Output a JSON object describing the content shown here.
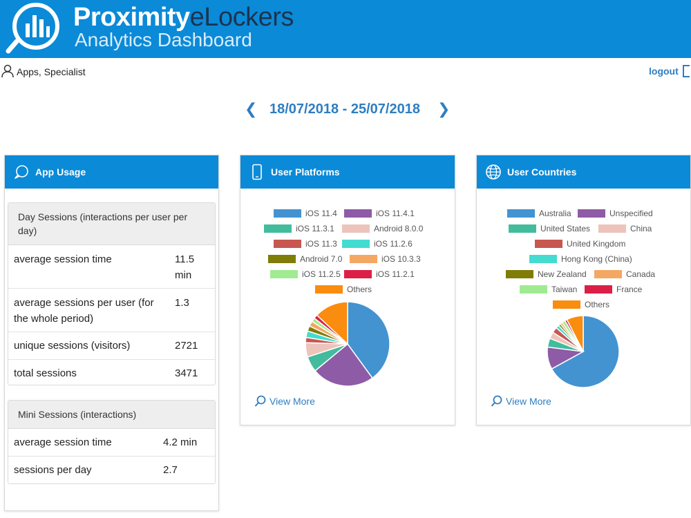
{
  "header": {
    "brand_main": "Proximity",
    "brand_accent": "eLockers",
    "brand_sub": "Analytics Dashboard"
  },
  "user": {
    "name": "Apps, Specialist",
    "logout": "logout"
  },
  "date_range": {
    "prev": "❮",
    "text": "18/07/2018 - 25/07/2018",
    "next": "❯"
  },
  "usage": {
    "title": "App Usage",
    "day": {
      "heading": "Day Sessions (interactions per user per day)",
      "rows": [
        {
          "label": "average session time",
          "value": "11.5 min"
        },
        {
          "label": "average sessions per user (for the whole period)",
          "value": "1.3"
        },
        {
          "label": "unique sessions (visitors)",
          "value": "2721"
        },
        {
          "label": "total sessions",
          "value": "3471"
        }
      ]
    },
    "mini": {
      "heading": "Mini Sessions (interactions)",
      "rows": [
        {
          "label": "average session time",
          "value": "4.2 min"
        },
        {
          "label": "sessions per day",
          "value": "2.7"
        }
      ]
    }
  },
  "platforms": {
    "title": "User Platforms",
    "view_more": "View More"
  },
  "countries": {
    "title": "User Countries",
    "view_more": "View More"
  },
  "colors": {
    "brand_blue": "#0b8ad8",
    "link_blue": "#2e7dc2"
  },
  "chart_data": [
    {
      "type": "pie",
      "categories": [
        "iOS 11.4",
        "iOS 11.4.1",
        "iOS 11.3.1",
        "Android 8.0.0",
        "iOS 11.3",
        "iOS 11.2.6",
        "Android 7.0",
        "iOS 10.3.3",
        "iOS 11.2.5",
        "iOS 11.2.1",
        "Others"
      ],
      "values": [
        40,
        24,
        6,
        5.5,
        2,
        2.5,
        2,
        2,
        1.5,
        1.5,
        13
      ],
      "colors": [
        "#4393d1",
        "#8e5ba6",
        "#42bc9c",
        "#edc4bb",
        "#c7574f",
        "#44dbd0",
        "#7f7d08",
        "#f4a762",
        "#a0eb92",
        "#dc1f47",
        "#fa8c0f"
      ]
    },
    {
      "type": "pie",
      "categories": [
        "Australia",
        "Unspecified",
        "United States",
        "China",
        "United Kingdom",
        "Hong Kong (China)",
        "New Zealand",
        "Canada",
        "Taiwan",
        "France",
        "Others"
      ],
      "values": [
        67,
        10,
        4,
        3,
        2.5,
        1.5,
        1,
        1,
        1.5,
        1,
        7.5
      ],
      "colors": [
        "#4393d1",
        "#8e5ba6",
        "#42bc9c",
        "#edc4bb",
        "#c7574f",
        "#44dbd0",
        "#7f7d08",
        "#f4a762",
        "#a0eb92",
        "#dc1f47",
        "#fa8c0f"
      ]
    }
  ]
}
